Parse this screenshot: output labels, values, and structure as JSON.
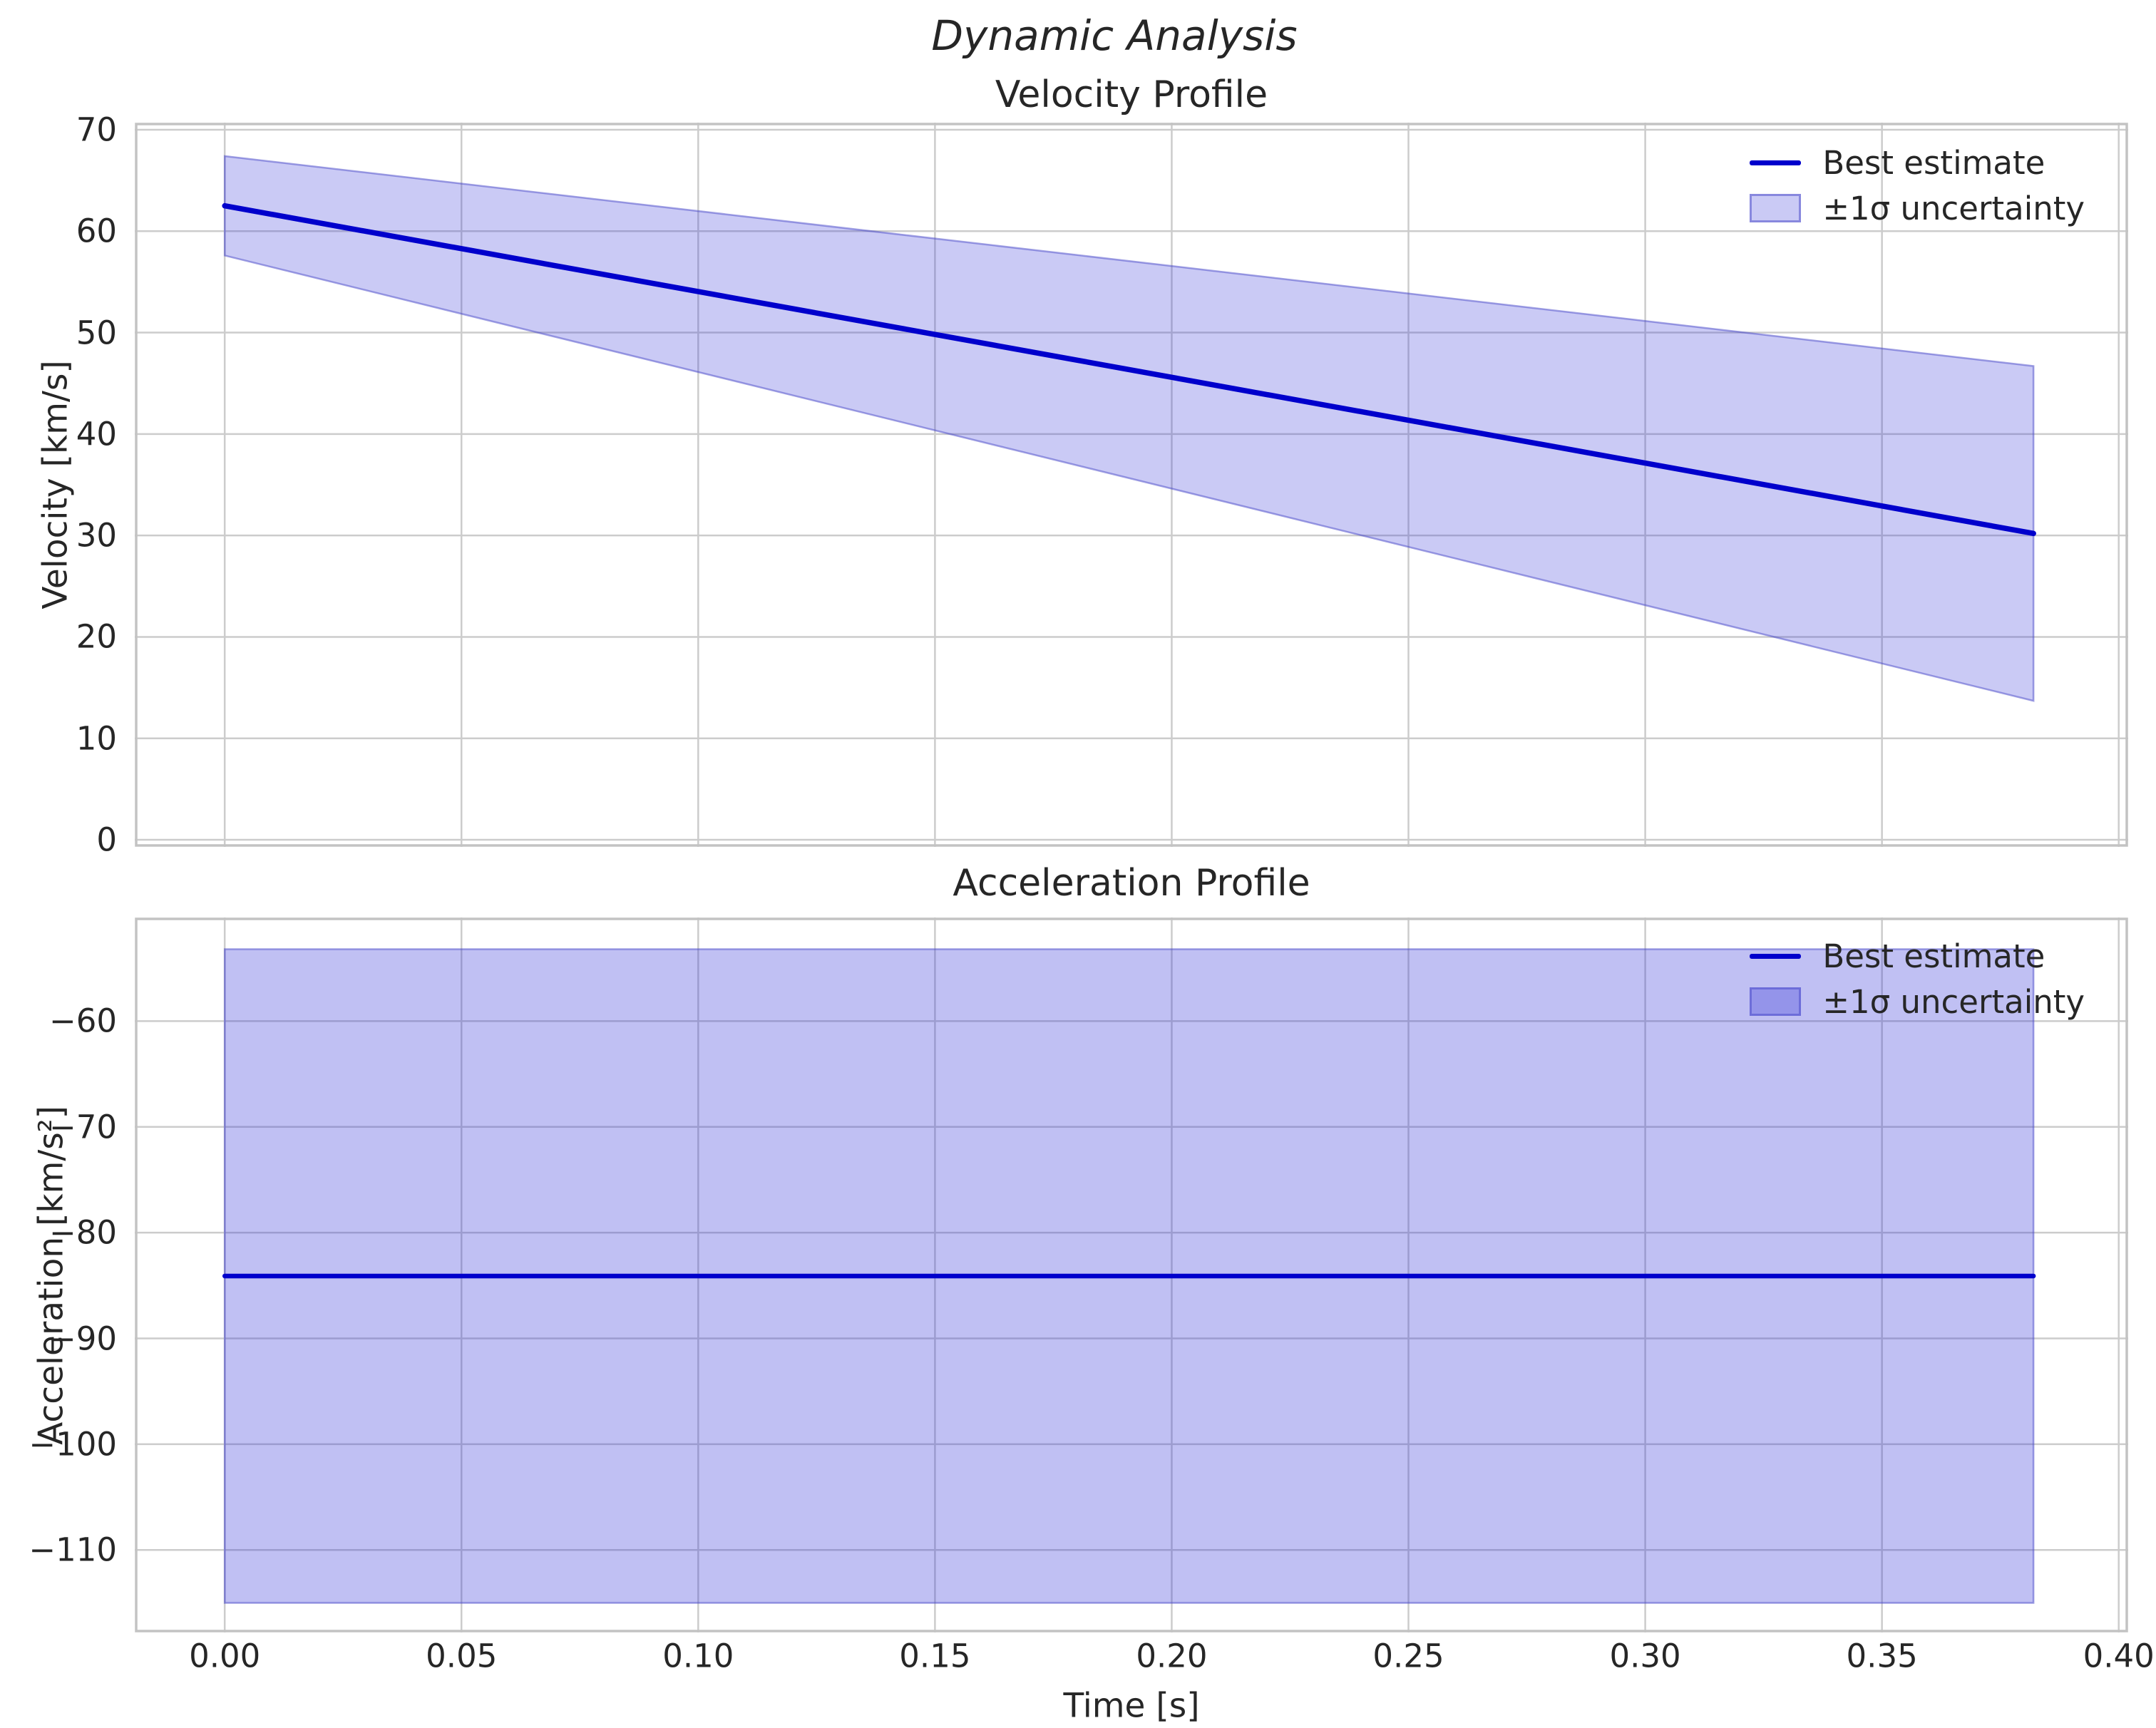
{
  "figure": {
    "suptitle": "Dynamic Analysis",
    "xlabel": "Time [s]"
  },
  "legend": {
    "line_label": "Best estimate",
    "band_label": "±1σ uncertainty"
  },
  "colors": {
    "line": "#0000cc",
    "band_fill_velocity": "rgba(45,45,215,0.25)",
    "band_fill_acceleration": "rgba(45,45,215,0.30)",
    "band_edge": "rgba(70,70,200,0.50)",
    "grid": "#cccccc",
    "spine": "#c3c3c3",
    "text": "#262626"
  },
  "chart_data": [
    {
      "type": "line",
      "title": "Velocity Profile",
      "ylabel": "Velocity [km/s]",
      "xlabel": "Time [s]",
      "x": [
        0.0,
        0.382
      ],
      "series": [
        {
          "name": "Best estimate",
          "values": [
            62.5,
            30.2
          ]
        }
      ],
      "band": {
        "name": "±1σ uncertainty",
        "upper": [
          67.4,
          46.7
        ],
        "lower": [
          57.6,
          13.7
        ]
      },
      "xlim": [
        -0.019,
        0.402
      ],
      "ylim": [
        -0.7,
        70.7
      ],
      "xticks": [
        0.0,
        0.05,
        0.1,
        0.15,
        0.2,
        0.25,
        0.3,
        0.35,
        0.4
      ],
      "xtick_labels": [
        "0.00",
        "0.05",
        "0.10",
        "0.15",
        "0.20",
        "0.25",
        "0.30",
        "0.35",
        "0.40"
      ],
      "yticks": [
        0,
        10,
        20,
        30,
        40,
        50,
        60,
        70
      ],
      "ytick_labels": [
        "0",
        "10",
        "20",
        "30",
        "40",
        "50",
        "60",
        "70"
      ],
      "grid": true,
      "legend_position": "upper right",
      "show_xtick_labels": false
    },
    {
      "type": "line",
      "title": "Acceleration Profile",
      "ylabel": "Acceleration [km/s²]",
      "xlabel": "Time [s]",
      "x": [
        0.0,
        0.382
      ],
      "series": [
        {
          "name": "Best estimate",
          "values": [
            -84.1,
            -84.1
          ]
        }
      ],
      "band": {
        "name": "±1σ uncertainty",
        "upper": [
          -53.2,
          -53.2
        ],
        "lower": [
          -115.0,
          -115.0
        ]
      },
      "xlim": [
        -0.019,
        0.402
      ],
      "ylim": [
        -117.8,
        -50.2
      ],
      "xticks": [
        0.0,
        0.05,
        0.1,
        0.15,
        0.2,
        0.25,
        0.3,
        0.35,
        0.4
      ],
      "xtick_labels": [
        "0.00",
        "0.05",
        "0.10",
        "0.15",
        "0.20",
        "0.25",
        "0.30",
        "0.35",
        "0.40"
      ],
      "yticks": [
        -110,
        -100,
        -90,
        -80,
        -70,
        -60
      ],
      "ytick_labels": [
        "−110",
        "−100",
        "−90",
        "−80",
        "−70",
        "−60"
      ],
      "grid": true,
      "legend_position": "upper right",
      "show_xtick_labels": true
    }
  ]
}
